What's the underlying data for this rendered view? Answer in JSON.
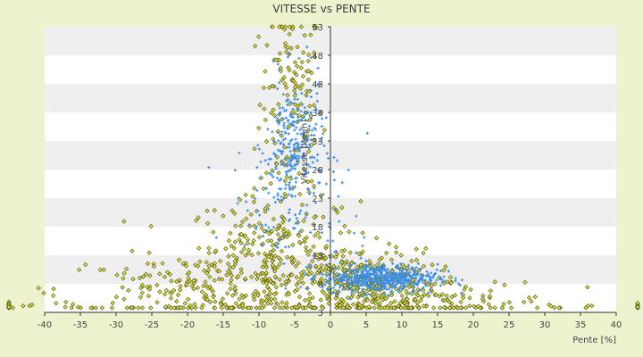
{
  "chart_data": {
    "type": "scatter",
    "title": "VITESSE vs PENTE",
    "xlabel": "Pente [%]",
    "ylabel": "Vitesse [km/h]",
    "xlim": [
      -40,
      40
    ],
    "ylim": [
      3,
      53
    ],
    "x_ticks": [
      -40,
      -35,
      -30,
      -25,
      -20,
      -15,
      -10,
      -5,
      0,
      5,
      10,
      15,
      20,
      25,
      30,
      35,
      40
    ],
    "y_ticks": [
      3,
      8,
      13,
      18,
      23,
      28,
      33,
      38,
      43,
      48,
      53
    ],
    "grid": "alternating horizontal bands",
    "legend": "none",
    "colors": {
      "background": "#eef2cf",
      "plot": "#ffffff",
      "band": "#efefef",
      "series_yellow_fill": "#e3e634",
      "series_yellow_stroke": "#4a4a1a",
      "series_blue": "#3b8ee8"
    },
    "series": [
      {
        "marker": "diamond",
        "color": "#e3e634",
        "clusters": [
          {
            "x_center": -5.5,
            "y_center": 40,
            "x_spread": 2.2,
            "y_spread": 9,
            "count": 150
          },
          {
            "x_center": -8,
            "y_center": 12,
            "x_spread": 6,
            "y_spread": 6,
            "count": 320
          },
          {
            "x_center": -20,
            "y_center": 7,
            "x_spread": 9,
            "y_spread": 3,
            "count": 160
          },
          {
            "x_center": 5,
            "y_center": 8,
            "x_spread": 5,
            "y_spread": 3,
            "count": 320
          },
          {
            "x_center": 15,
            "y_center": 5,
            "x_spread": 8,
            "y_spread": 2,
            "count": 110
          },
          {
            "x_center": 0,
            "y_center": 4,
            "x_spread": 40,
            "y_spread": 0.4,
            "count": 90
          }
        ]
      },
      {
        "marker": "plus",
        "color": "#3b8ee8",
        "clusters": [
          {
            "x_center": -5,
            "y_center": 32,
            "x_spread": 2,
            "y_spread": 6,
            "count": 260
          },
          {
            "x_center": -8,
            "y_center": 22,
            "x_spread": 3,
            "y_spread": 5,
            "count": 60
          },
          {
            "x_center": 7,
            "y_center": 9,
            "x_spread": 4,
            "y_spread": 1.2,
            "count": 520
          },
          {
            "x_center": 2,
            "y_center": 18,
            "x_spread": 2,
            "y_spread": 6,
            "count": 25
          }
        ]
      }
    ]
  }
}
